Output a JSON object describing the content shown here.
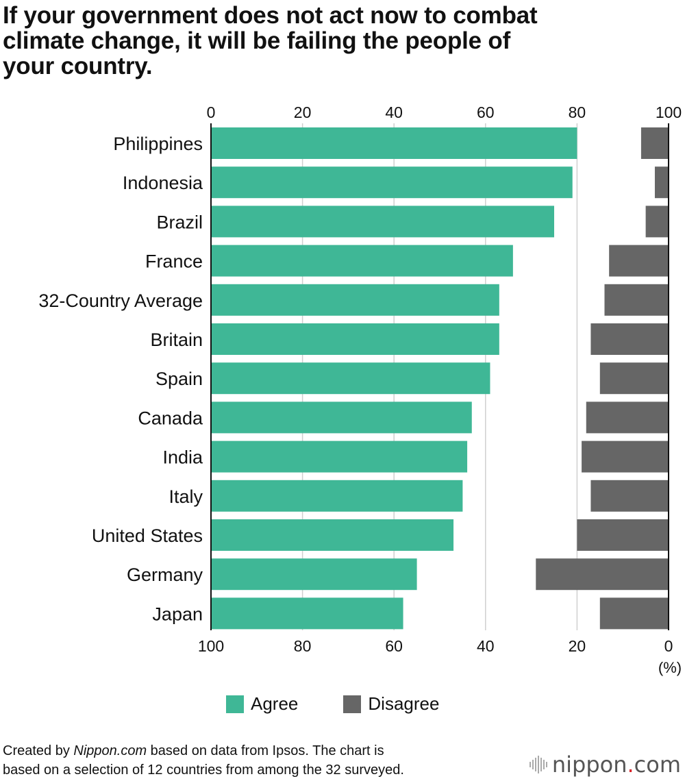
{
  "title_lines": [
    "If your government does not act now to combat",
    "climate change, it will be failing the people of",
    "your country."
  ],
  "chart_data": {
    "type": "bar",
    "orientation": "horizontal",
    "categories": [
      "Philippines",
      "Indonesia",
      "Brazil",
      "France",
      "32-Country Average",
      "Britain",
      "Spain",
      "Canada",
      "India",
      "Italy",
      "United States",
      "Germany",
      "Japan"
    ],
    "series": [
      {
        "name": "Agree",
        "values": [
          80,
          79,
          75,
          66,
          63,
          63,
          61,
          57,
          56,
          55,
          53,
          45,
          42
        ],
        "axis": "top",
        "origin": "left",
        "color": "#3fb796"
      },
      {
        "name": "Disagree",
        "values": [
          6,
          3,
          5,
          13,
          14,
          17,
          15,
          18,
          19,
          17,
          20,
          29,
          15
        ],
        "axis": "bottom",
        "origin": "right",
        "color": "#666666"
      }
    ],
    "top_axis_ticks": [
      "0",
      "20",
      "40",
      "60",
      "80",
      "100"
    ],
    "bottom_axis_ticks": [
      "100",
      "80",
      "60",
      "40",
      "20",
      "0"
    ],
    "xlim": [
      0,
      100
    ],
    "unit_label": "(%)",
    "grid": true,
    "legend": "bottom"
  },
  "legend": {
    "items": [
      {
        "label": "Agree",
        "color": "#3fb796"
      },
      {
        "label": "Disagree",
        "color": "#666666"
      }
    ]
  },
  "footnote": {
    "prefix": "Created by ",
    "source_italic": "Nippon.com",
    "suffix": " based on data from Ipsos. The chart is",
    "line2": "based on a selection of 12 countries from among the 32 surveyed."
  },
  "logo": {
    "name": "nippon",
    "dot": ".",
    "tld": "com",
    "icon": "sound-bars-icon"
  }
}
